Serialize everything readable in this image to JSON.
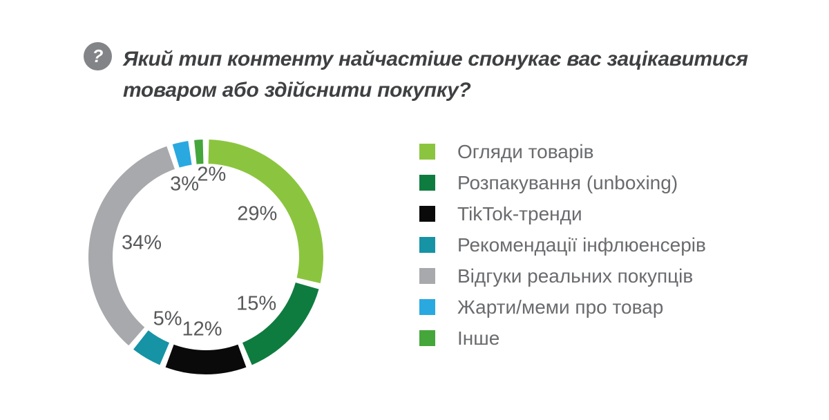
{
  "colors": {
    "background": "#FFFFFF",
    "icon_bg": "#828487",
    "title_text": "#3F4042",
    "percent_label_text": "#58595B",
    "legend_text": "#6A6B6E"
  },
  "header": {
    "icon": "question-mark-icon",
    "icon_glyph": "?",
    "title_line1": "Який тип контенту найчастіше спонукає вас зацікавитися",
    "title_line2": "товаром або здійснити покупку?"
  },
  "chart_data": {
    "type": "pie",
    "subtype": "donut",
    "title": "Який тип контенту найчастіше спонукає вас зацікавитися товаром або здійснити покупку?",
    "categories": [
      "Огляди товарів",
      "Розпакування (unboxing)",
      "TikTok-тренди",
      "Рекомендації інфлюенсерів",
      "Відгуки реальних покупців",
      "Жарти/меми про товар",
      "Інше"
    ],
    "values": [
      29,
      15,
      12,
      5,
      34,
      3,
      2
    ],
    "data_labels": [
      "29%",
      "15%",
      "12%",
      "5%",
      "34%",
      "3%",
      "2%"
    ],
    "colors": [
      "#8BC53F",
      "#0E7C3F",
      "#0A0A0A",
      "#1693A5",
      "#A7A9AC",
      "#29A9E0",
      "#45A63C"
    ],
    "unit": "%",
    "start_angle_deg": 0,
    "direction": "clockwise",
    "segment_gap_deg": 3,
    "outer_radius": 170,
    "inner_radius": 135,
    "donut_hole_ratio": 0.79,
    "legend_position": "right",
    "label_placement": [
      {
        "angle_deg": 50,
        "radius": 97
      },
      {
        "angle_deg": 133,
        "radius": 100
      },
      {
        "angle_deg": 183,
        "radius": 105
      },
      {
        "angle_deg": 211.5,
        "radius": 106
      },
      {
        "angle_deg": 282,
        "radius": 95
      },
      {
        "angle_deg": 343.5,
        "radius": 109
      },
      {
        "angle_deg": 4,
        "radius": 119
      }
    ]
  }
}
